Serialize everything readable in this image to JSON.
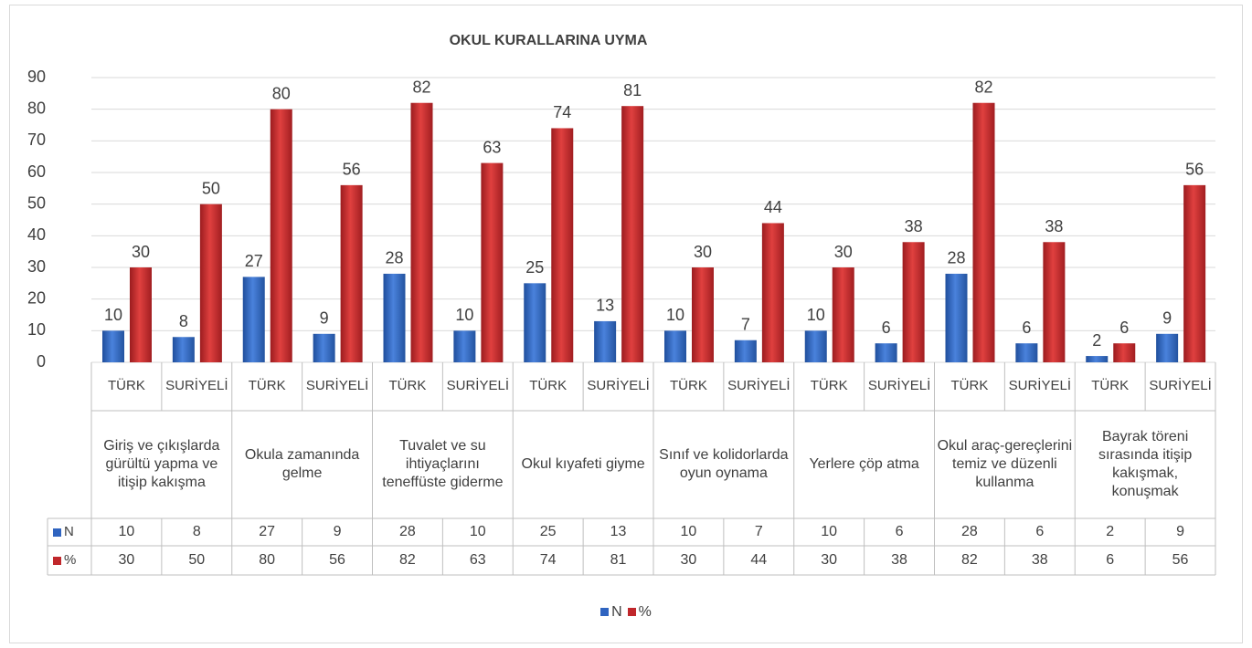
{
  "chart_data": {
    "type": "bar",
    "title": "OKUL KURALLARINA UYMA",
    "categories": [
      "TÜRK",
      "SURİYELİ",
      "TÜRK",
      "SURİYELİ",
      "TÜRK",
      "SURİYELİ",
      "TÜRK",
      "SURİYELİ",
      "TÜRK",
      "SURİYELİ",
      "TÜRK",
      "SURİYELİ",
      "TÜRK",
      "SURİYELİ",
      "TÜRK",
      "SURİYELİ"
    ],
    "groups": [
      "Giriş ve çıkışlarda gürültü yapma ve itişip kakışma",
      "Okula zamanında gelme",
      "Tuvalet ve su ihtiyaçlarını teneffüste giderme",
      "Okul kıyafeti giyme",
      "Sınıf ve kolidorlarda oyun oynama",
      "Yerlere çöp atma",
      "Okul araç-gereçlerini temiz ve düzenli kullanma",
      "Bayrak töreni sırasında itişip kakışmak, konuşmak"
    ],
    "series": [
      {
        "name": "N",
        "color": "#2f64c0",
        "values": [
          10,
          8,
          27,
          9,
          28,
          10,
          25,
          13,
          10,
          7,
          10,
          6,
          28,
          6,
          2,
          9
        ]
      },
      {
        "name": "%",
        "color": "#c0272b",
        "values": [
          30,
          50,
          80,
          56,
          82,
          63,
          74,
          81,
          30,
          44,
          30,
          38,
          82,
          38,
          6,
          56
        ]
      }
    ],
    "ylim": [
      0,
      90
    ],
    "yticks": [
      0,
      10,
      20,
      30,
      40,
      50,
      60,
      70,
      80,
      90
    ],
    "grid": true,
    "legend": "bottom"
  }
}
